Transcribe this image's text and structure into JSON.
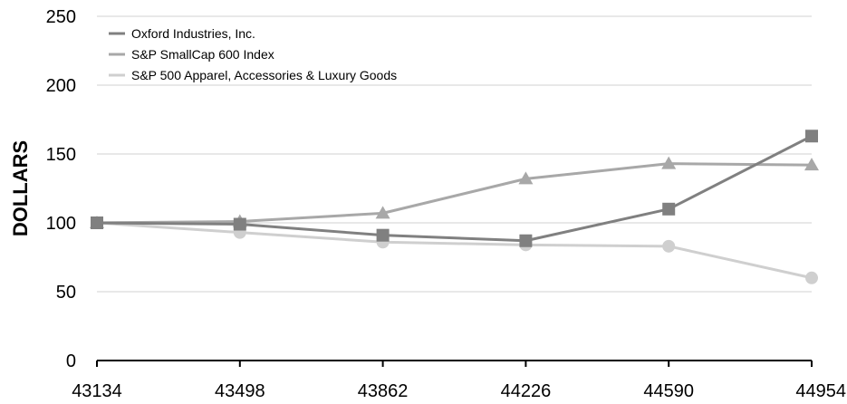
{
  "chart_data": {
    "type": "line",
    "title": "",
    "xlabel": "",
    "ylabel": "DOLLARS",
    "x": [
      43134,
      43498,
      43862,
      44226,
      44590,
      44954
    ],
    "ylim": [
      0,
      250
    ],
    "yticks": [
      0,
      50,
      100,
      150,
      200,
      250
    ],
    "grid": true,
    "legend": "top-left",
    "series": [
      {
        "name": "Oxford Industries, Inc.",
        "color": "#808080",
        "marker": "square",
        "values": [
          100,
          99,
          91,
          87,
          110,
          163
        ]
      },
      {
        "name": "S&P SmallCap 600 Index",
        "color": "#a8a8a8",
        "marker": "triangle",
        "values": [
          100,
          101,
          107,
          132,
          143,
          142
        ]
      },
      {
        "name": "S&P 500 Apparel, Accessories & Luxury Goods",
        "color": "#cfcfcf",
        "marker": "circle",
        "values": [
          100,
          93,
          86,
          84,
          83,
          60
        ]
      }
    ]
  }
}
